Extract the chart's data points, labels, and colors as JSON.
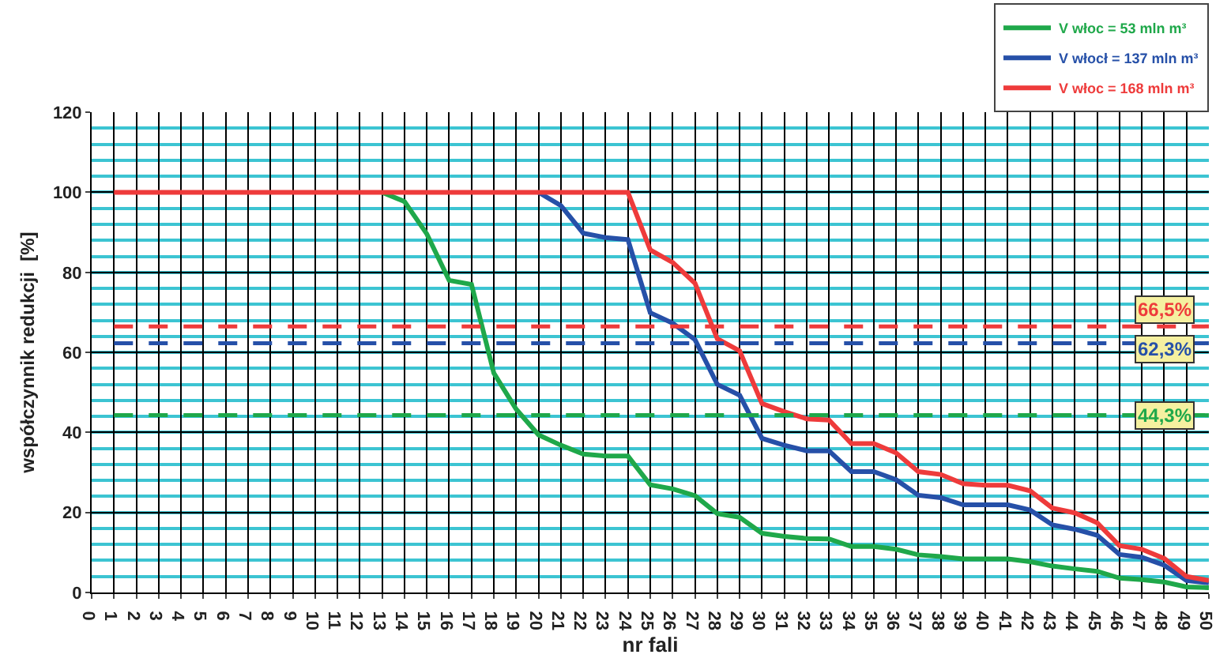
{
  "chart_data": {
    "type": "line",
    "xlabel": "nr fali",
    "ylabel": "współczynnik redukcji  [%]",
    "x": [
      1,
      2,
      3,
      4,
      5,
      6,
      7,
      8,
      9,
      10,
      11,
      12,
      13,
      14,
      15,
      16,
      17,
      18,
      19,
      20,
      21,
      22,
      23,
      24,
      25,
      26,
      27,
      28,
      29,
      30,
      31,
      32,
      33,
      34,
      35,
      36,
      37,
      38,
      39,
      40,
      41,
      42,
      43,
      44,
      45,
      46,
      47,
      48,
      49,
      50
    ],
    "series": [
      {
        "name": "V włoc = 53 mln m³",
        "color": "#1fa84a",
        "values": [
          null,
          null,
          null,
          null,
          null,
          null,
          null,
          null,
          null,
          null,
          null,
          null,
          100,
          97.7,
          89.6,
          78,
          77,
          54.8,
          45.8,
          39.4,
          36.8,
          34.6,
          34.1,
          34.1,
          26.9,
          25.9,
          24.2,
          19.7,
          18.8,
          14.8,
          14,
          13.5,
          13.4,
          11.5,
          11.5,
          10.8,
          9.4,
          9,
          8.4,
          8.4,
          8.4,
          7.7,
          6.6,
          5.9,
          5.3,
          3.6,
          3.2,
          2.6,
          1.4,
          1.2
        ]
      },
      {
        "name": "V włocł = 137 mln m³",
        "color": "#2650a8",
        "values": [
          null,
          null,
          null,
          null,
          null,
          null,
          null,
          null,
          null,
          null,
          null,
          null,
          null,
          null,
          null,
          null,
          null,
          null,
          null,
          100,
          96.7,
          89.8,
          88.7,
          88.2,
          69.9,
          67.3,
          63.2,
          52,
          49.3,
          38.5,
          36.8,
          35.4,
          35.4,
          30.2,
          30.2,
          28.2,
          24.3,
          23.7,
          21.9,
          21.9,
          21.9,
          20.6,
          16.9,
          15.8,
          14.3,
          9.5,
          8.8,
          6.8,
          3,
          2.4
        ]
      },
      {
        "name": "V włoc = 168 mln m³",
        "color": "#ee3b3b",
        "values": [
          100,
          100,
          100,
          100,
          100,
          100,
          100,
          100,
          100,
          100,
          100,
          100,
          100,
          100,
          100,
          100,
          100,
          100,
          100,
          100,
          100,
          100,
          100,
          100,
          85.6,
          82.5,
          77.3,
          63.4,
          60.4,
          47.2,
          45.2,
          43.4,
          43.1,
          37.2,
          37.2,
          34.9,
          30.2,
          29.5,
          27.2,
          26.8,
          26.8,
          25.4,
          21.1,
          19.9,
          17.4,
          11.7,
          10.8,
          8.5,
          4,
          3
        ]
      }
    ],
    "ref_lines": [
      {
        "axis": "y",
        "value": 66.5,
        "label": "66,5%",
        "color": "#ee3b3b",
        "line_style": "dashed"
      },
      {
        "axis": "y",
        "value": 62.3,
        "label": "62,3%",
        "color": "#2650a8",
        "line_style": "dashed"
      },
      {
        "axis": "y",
        "value": 44.3,
        "label": "44,3%",
        "color": "#1fa84a",
        "line_style": "dashed"
      }
    ],
    "xlim": [
      0,
      50
    ],
    "xticks": [
      0,
      1,
      2,
      3,
      4,
      5,
      6,
      7,
      8,
      9,
      10,
      11,
      12,
      13,
      14,
      15,
      16,
      17,
      18,
      19,
      20,
      21,
      22,
      23,
      24,
      25,
      26,
      27,
      28,
      29,
      30,
      31,
      32,
      33,
      34,
      35,
      36,
      37,
      38,
      39,
      40,
      41,
      42,
      43,
      44,
      45,
      46,
      47,
      48,
      49,
      50
    ],
    "ylim": [
      0,
      120
    ],
    "yticks": [
      0,
      20,
      40,
      60,
      80,
      100,
      120
    ],
    "grid": true,
    "legend": "top right",
    "marker": "none",
    "line_style": "solid"
  }
}
